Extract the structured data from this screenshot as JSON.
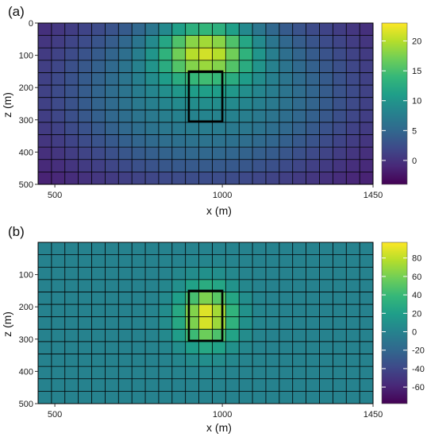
{
  "chart_data": [
    {
      "type": "heatmap",
      "panel_label": "(a)",
      "xlabel": "x (m)",
      "ylabel": "z (m)",
      "x_ticks": [
        500,
        1000,
        1450
      ],
      "y_ticks": [
        0,
        100,
        200,
        300,
        400,
        500
      ],
      "xlim": [
        450,
        1450
      ],
      "ylim": [
        0,
        500
      ],
      "y_inverted": true,
      "grid_cols": 25,
      "grid_rows": 13,
      "colorbar": {
        "ticks": [
          0,
          5,
          10,
          15,
          20
        ],
        "range": [
          -4,
          23
        ],
        "colormap": "viridis"
      },
      "field": {
        "peak": 22,
        "peak_x": 950,
        "peak_z": 90,
        "min": -3.5,
        "shape": "broad anomaly centred above the box"
      },
      "box": {
        "x": [
          900,
          1000
        ],
        "z": [
          150,
          305
        ]
      }
    },
    {
      "type": "heatmap",
      "panel_label": "(b)",
      "xlabel": "x (m)",
      "ylabel": "z (m)",
      "x_ticks": [
        500,
        1000,
        1450
      ],
      "y_ticks": [
        100,
        200,
        300,
        400,
        500
      ],
      "xlim": [
        450,
        1450
      ],
      "ylim": [
        0,
        500
      ],
      "y_inverted": true,
      "grid_cols": 25,
      "grid_rows": 13,
      "colorbar": {
        "ticks": [
          -60,
          -40,
          -20,
          0,
          20,
          40,
          60,
          80
        ],
        "range": [
          -78,
          97
        ],
        "colormap": "viridis"
      },
      "field": {
        "peak": 92,
        "peak_x": 955,
        "peak_z": 230,
        "background": 0,
        "shape": "compact anomaly inside the box"
      },
      "box": {
        "x": [
          900,
          1000
        ],
        "z": [
          150,
          305
        ]
      }
    }
  ],
  "colors": {
    "viridis": [
      "#440154",
      "#482878",
      "#3e4989",
      "#31688e",
      "#26828e",
      "#1f9e89",
      "#35b779",
      "#6ece58",
      "#b5de2b",
      "#fde725"
    ],
    "grid_line": "#000000",
    "box": "#000000"
  }
}
